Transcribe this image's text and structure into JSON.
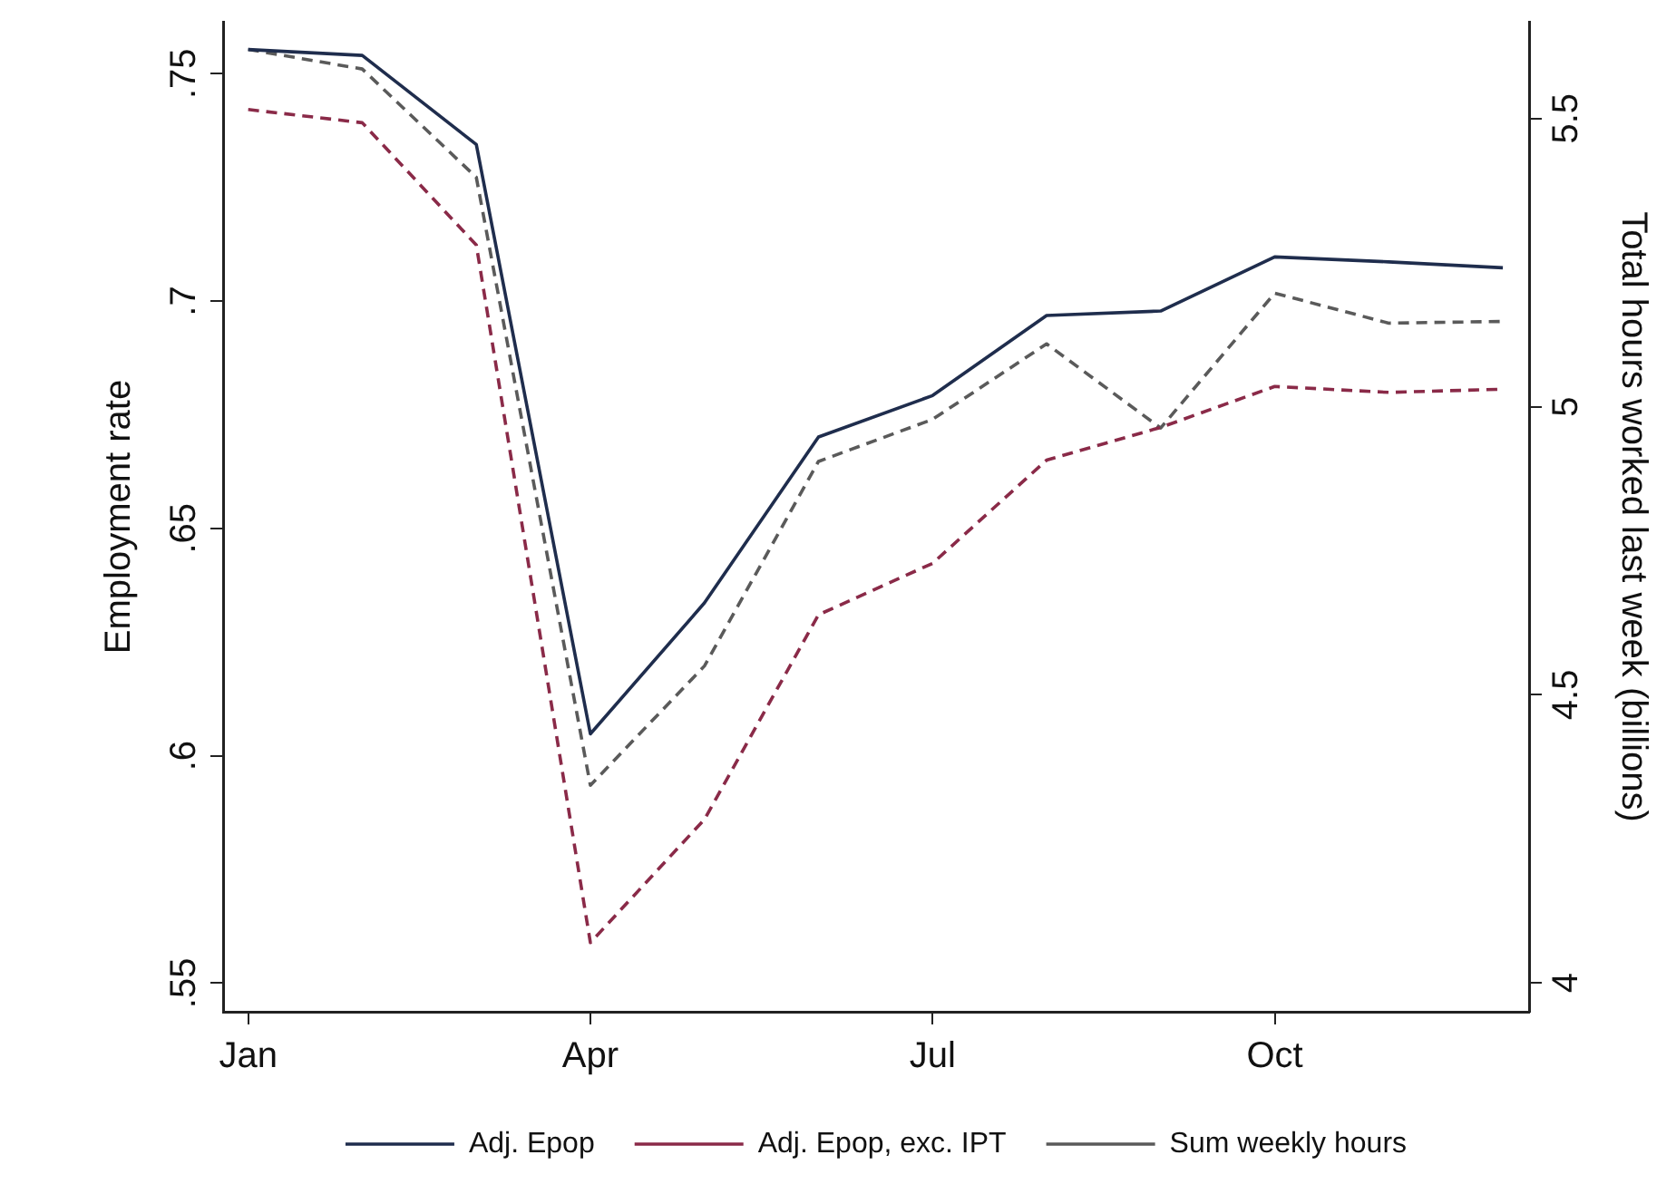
{
  "chart_data": {
    "type": "line",
    "ylabel": "Employment rate",
    "y2label": "Total hours worked last week (billions)",
    "categories": [
      "Jan",
      null,
      null,
      "Apr",
      null,
      null,
      "Jul",
      null,
      null,
      "Oct",
      null,
      null
    ],
    "ylim": [
      0.5437,
      0.7614
    ],
    "yticks": [
      {
        "value": 0.55,
        "label": ".55"
      },
      {
        "value": 0.6,
        "label": ".6"
      },
      {
        "value": 0.65,
        "label": ".65"
      },
      {
        "value": 0.7,
        "label": ".7"
      },
      {
        "value": 0.75,
        "label": ".75"
      }
    ],
    "y2lim": [
      3.95,
      5.668
    ],
    "y2ticks": [
      4,
      4.5,
      5,
      5.5
    ],
    "series": [
      {
        "name": "Adj. Epop",
        "color": "#1f2d4d",
        "line_style": "solid",
        "values": [
          0.7553,
          0.754,
          0.7344,
          0.6048,
          0.6336,
          0.6701,
          0.6792,
          0.6968,
          0.6978,
          0.7097,
          0.7086,
          0.7073
        ]
      },
      {
        "name": "Adj. Epop, exc. IPT",
        "color": "#8a2a48",
        "line_style": "dashed",
        "values": [
          0.7421,
          0.7392,
          0.7123,
          0.5589,
          0.586,
          0.631,
          0.6423,
          0.665,
          0.6722,
          0.6812,
          0.6799,
          0.6806
        ]
      },
      {
        "name": "Sum weekly hours",
        "color": "#5a5a5a",
        "line_style": "dashed",
        "axis": "y2",
        "values": [
          5.62,
          5.586,
          5.398,
          4.343,
          4.55,
          4.905,
          4.978,
          5.109,
          4.963,
          5.197,
          5.145,
          5.148
        ]
      }
    ],
    "legend": "bottom",
    "grid": false,
    "marker": "none"
  }
}
